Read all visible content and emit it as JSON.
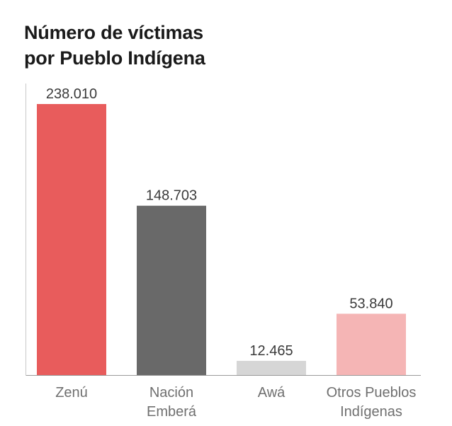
{
  "chart_data": {
    "type": "bar",
    "title": [
      "Número de víctimas",
      "por Pueblo Indígena"
    ],
    "categories": [
      [
        "Zenú"
      ],
      [
        "Nación",
        "Emberá"
      ],
      [
        "Awá"
      ],
      [
        "Otros Pueblos",
        "Indígenas"
      ]
    ],
    "values": [
      238010,
      148703,
      12465,
      53840
    ],
    "value_labels": [
      "238.010",
      "148.703",
      "12.465",
      "53.840"
    ],
    "colors": [
      "#e85c5c",
      "#696969",
      "#d6d6d6",
      "#f5b5b5"
    ],
    "ylim": [
      0,
      238010
    ],
    "grid": false,
    "legend": "none"
  }
}
